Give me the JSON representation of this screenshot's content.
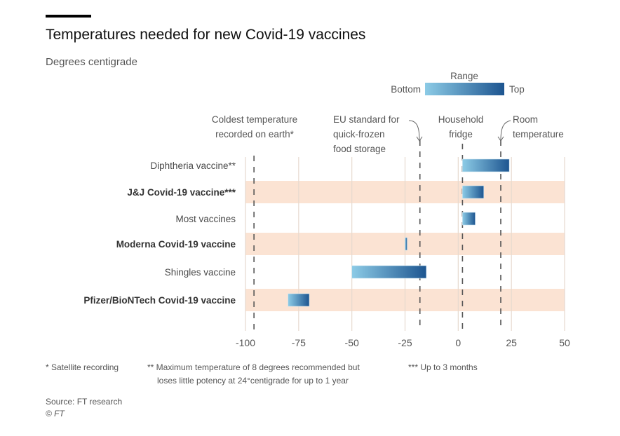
{
  "chart_data": {
    "type": "bar",
    "subtype": "floating-range-horizontal",
    "title": "Temperatures needed for new Covid-19 vaccines",
    "subtitle": "Degrees centigrade",
    "legend": {
      "title": "Range",
      "bottom_label": "Bottom",
      "top_label": "Top",
      "placement": "top-right"
    },
    "xlim": [
      -100,
      50
    ],
    "xticks": [
      "-100",
      "-75",
      "-50",
      "-25",
      "0",
      "25",
      "50"
    ],
    "xtick_values": [
      -100,
      -75,
      -50,
      -25,
      0,
      25,
      50
    ],
    "grid": true,
    "categories": [
      "Diphtheria vaccine**",
      "J&J Covid-19 vaccine***",
      "Most vaccines",
      "Moderna Covid-19 vaccine",
      "Shingles vaccine",
      "Pfizer/BioNTech Covid-19 vaccine"
    ],
    "highlighted": [
      false,
      true,
      false,
      true,
      false,
      true
    ],
    "bottom": [
      2,
      2,
      2,
      -25,
      -50,
      -80
    ],
    "top": [
      24,
      12,
      8,
      -24,
      -15,
      -70
    ],
    "reference_lines": [
      {
        "label_lines": [
          "Coldest temperature",
          "recorded on earth*"
        ],
        "value": -96
      },
      {
        "label_lines": [
          "EU standard for",
          "quick-frozen",
          "food storage"
        ],
        "value": -18
      },
      {
        "label_lines": [
          "Household",
          "fridge"
        ],
        "value": 2
      },
      {
        "label_lines": [
          "Room",
          "temperature"
        ],
        "value": 20
      }
    ],
    "colors": {
      "bar_bottom": "#8ccbe6",
      "bar_top": "#1d5590",
      "highlight_band": "#fbe3d3",
      "grid": "#e6d9cf",
      "ref_line": "#555555"
    }
  },
  "footnotes": [
    "* Satellite recording",
    "** Maximum temperature of 8 degrees recommended but",
    "loses little potency at 24°centigrade for up to 1 year",
    "*** Up to 3 months"
  ],
  "source": "Source: FT research",
  "copyright": "© FT"
}
